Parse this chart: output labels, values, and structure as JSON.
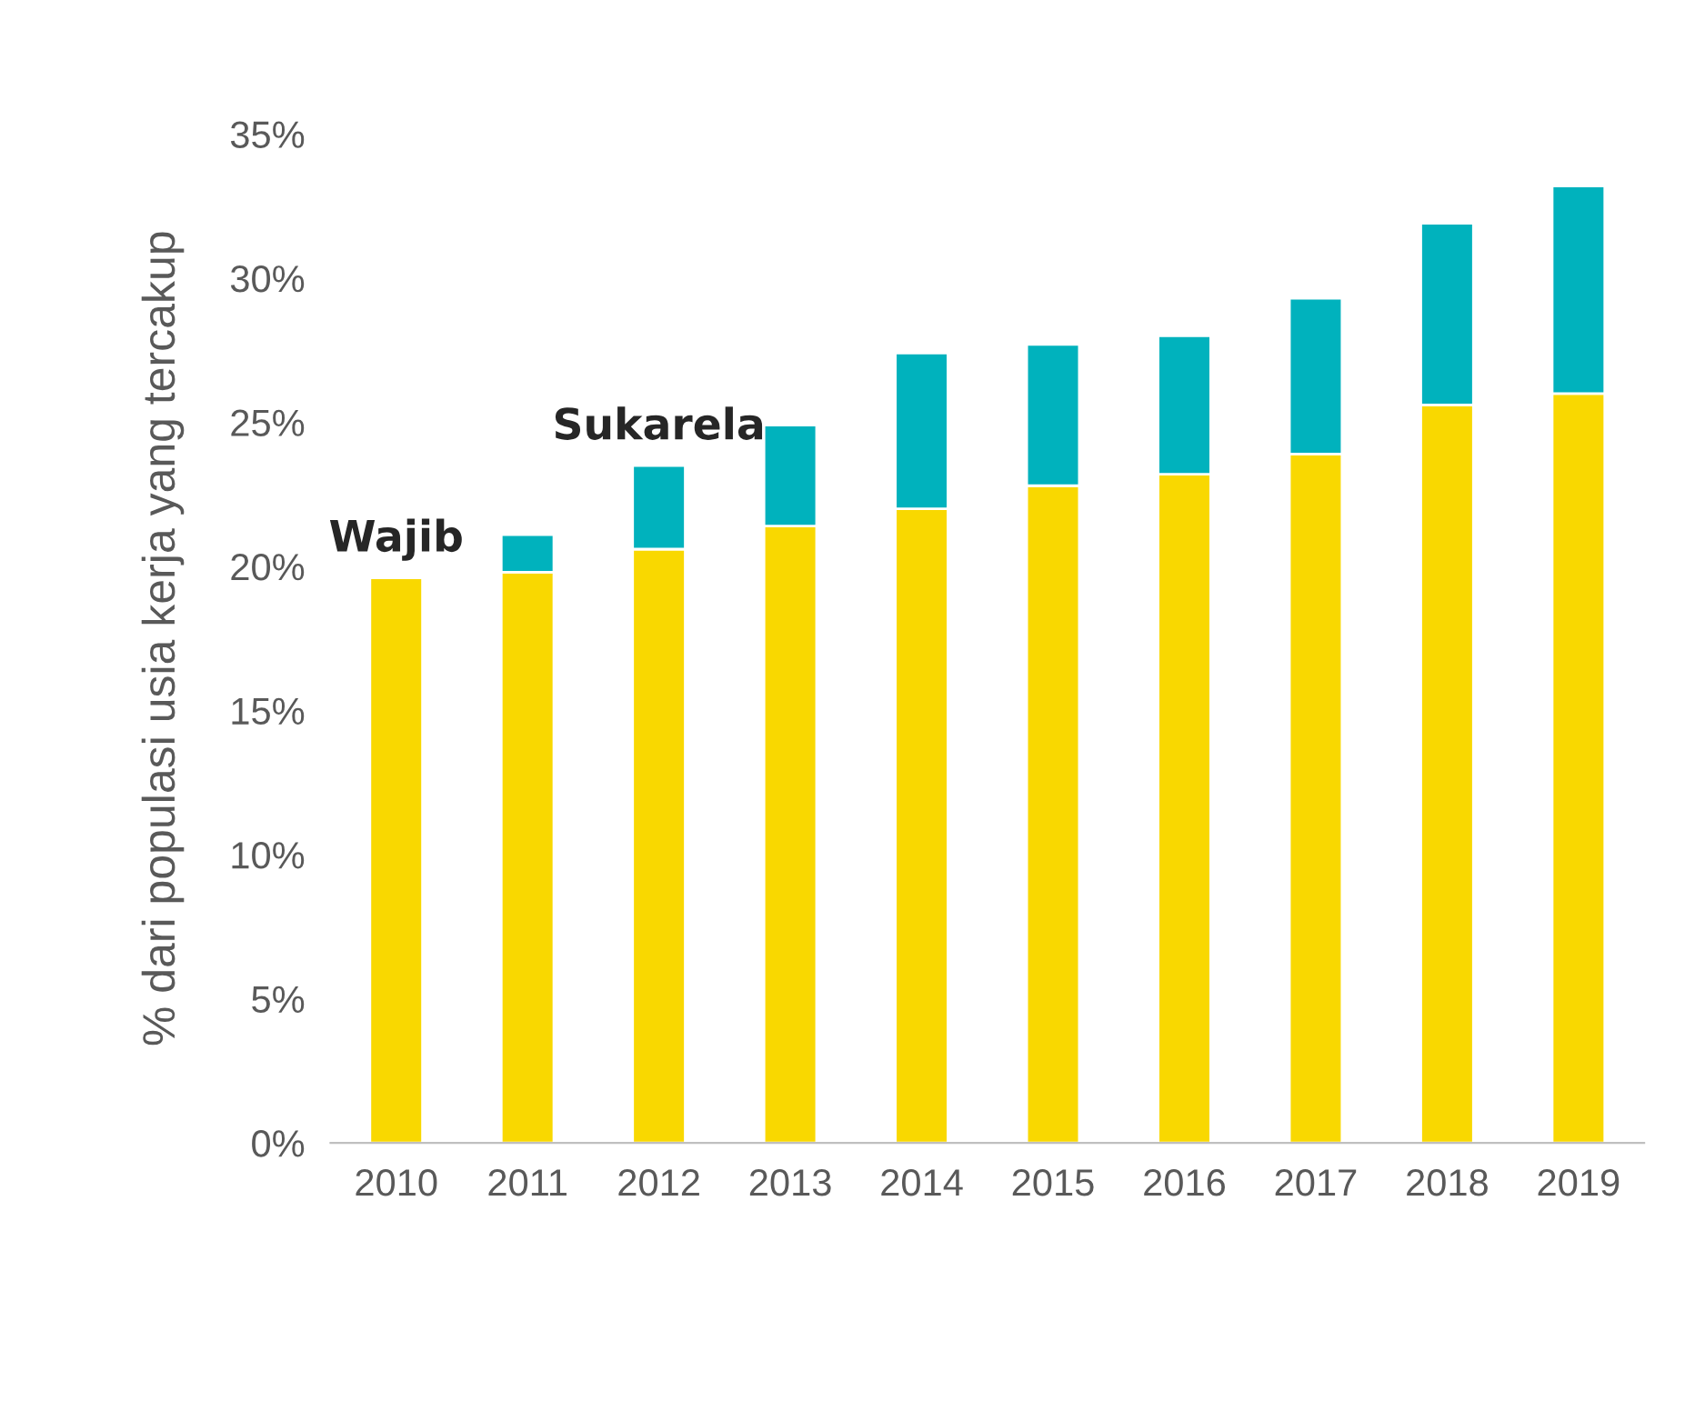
{
  "chart_data": {
    "type": "bar",
    "stacked": true,
    "ylabel": "% dari populasi usia kerja yang tercakup",
    "categories": [
      "2010",
      "2011",
      "2012",
      "2013",
      "2014",
      "2015",
      "2016",
      "2017",
      "2018",
      "2019"
    ],
    "series": [
      {
        "name": "Wajib",
        "color": "#f9d800",
        "values": [
          19.6,
          19.8,
          20.6,
          21.4,
          22.0,
          22.8,
          23.2,
          23.9,
          25.6,
          26.0
        ]
      },
      {
        "name": "Sukarela",
        "color": "#00b2bd",
        "values": [
          null,
          1.3,
          2.9,
          3.5,
          5.4,
          4.9,
          4.8,
          5.4,
          6.3,
          7.2
        ]
      }
    ],
    "ylim": [
      0,
      35
    ],
    "yticks": [
      {
        "value": 0,
        "label": "0%"
      },
      {
        "value": 5,
        "label": "5%"
      },
      {
        "value": 10,
        "label": "10%"
      },
      {
        "value": 15,
        "label": "15%"
      },
      {
        "value": 20,
        "label": "20%"
      },
      {
        "value": 25,
        "label": "25%"
      },
      {
        "value": 30,
        "label": "30%"
      },
      {
        "value": 35,
        "label": "35%"
      }
    ],
    "grid": false,
    "legend": false
  }
}
